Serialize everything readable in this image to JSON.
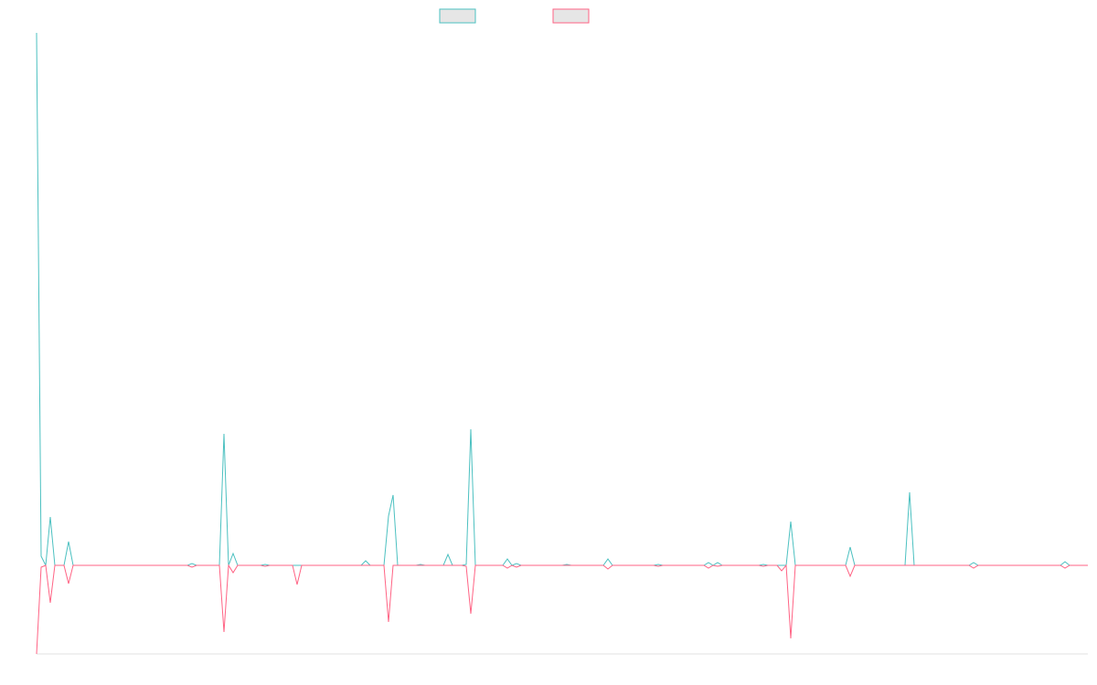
{
  "chart_data": {
    "type": "line",
    "x": [
      0,
      1,
      2,
      3,
      4,
      6,
      7,
      8,
      33,
      34,
      35,
      40,
      41,
      42,
      43,
      44,
      49,
      50,
      51,
      56,
      57,
      58,
      71,
      72,
      73,
      76,
      77,
      78,
      79,
      83,
      84,
      85,
      89,
      90,
      91,
      93,
      94,
      95,
      96,
      102,
      103,
      104,
      105,
      106,
      115,
      116,
      117,
      124,
      125,
      126,
      135,
      136,
      137,
      146,
      147,
      148,
      149,
      150,
      158,
      159,
      160,
      162,
      163,
      164,
      165,
      166,
      177,
      178,
      179,
      190,
      191,
      192,
      204,
      205,
      206,
      224,
      225,
      226,
      230
    ],
    "series": [
      {
        "color": "#4bc0c0",
        "values": [
          583,
          10,
          0,
          53,
          0,
          0,
          26,
          0,
          0,
          2,
          0,
          0,
          144,
          0,
          13,
          0,
          0,
          1,
          0,
          0,
          0,
          0,
          0,
          5,
          0,
          0,
          54,
          77,
          0,
          0,
          1,
          0,
          0,
          12,
          0,
          0,
          1,
          149,
          0,
          0,
          7,
          0,
          2,
          0,
          0,
          1,
          0,
          0,
          7,
          0,
          0,
          1,
          0,
          0,
          3,
          0,
          3,
          0,
          0,
          1,
          0,
          0,
          0,
          0,
          48,
          0,
          0,
          20,
          0,
          0,
          80,
          0,
          0,
          3,
          0,
          0,
          4,
          0,
          0
        ]
      },
      {
        "color": "#ff6384",
        "values": [
          -97,
          -2,
          0,
          -41,
          0,
          0,
          -20,
          0,
          0,
          -2,
          0,
          0,
          -73,
          0,
          -8,
          0,
          0,
          -1,
          0,
          0,
          -21,
          0,
          0,
          0,
          0,
          0,
          -62,
          0,
          0,
          0,
          0,
          0,
          0,
          0,
          0,
          0,
          -1,
          -53,
          0,
          0,
          -3,
          0,
          -2,
          0,
          0,
          0,
          0,
          0,
          -4,
          0,
          0,
          -1,
          0,
          0,
          -3,
          0,
          -1,
          0,
          0,
          -1,
          0,
          0,
          -6,
          0,
          -80,
          0,
          0,
          -12,
          0,
          0,
          0,
          0,
          0,
          -3,
          0,
          0,
          -3,
          0,
          0
        ]
      }
    ],
    "xlim": [
      0,
      230
    ],
    "ylim": [
      -97,
      583
    ]
  }
}
